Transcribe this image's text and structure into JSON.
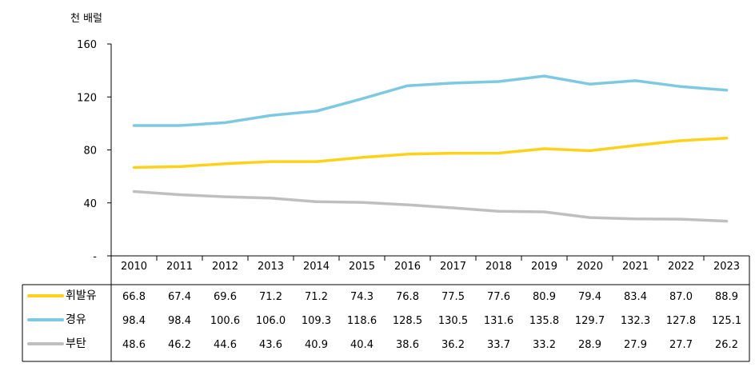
{
  "chart_data": {
    "type": "line",
    "unit_label": "천 배럴",
    "y_ticks": [
      "-",
      "40",
      "80",
      "120",
      "160"
    ],
    "ylim": [
      0,
      160
    ],
    "categories": [
      "2010",
      "2011",
      "2012",
      "2013",
      "2014",
      "2015",
      "2016",
      "2017",
      "2018",
      "2019",
      "2020",
      "2021",
      "2022",
      "2023"
    ],
    "series": [
      {
        "name": "휘발유",
        "color": "#FFD21A",
        "values": [
          66.8,
          67.4,
          69.6,
          71.2,
          71.2,
          74.3,
          76.8,
          77.5,
          77.6,
          80.9,
          79.4,
          83.4,
          87.0,
          88.9
        ],
        "labels": [
          "66.8",
          "67.4",
          "69.6",
          "71.2",
          "71.2",
          "74.3",
          "76.8",
          "77.5",
          "77.6",
          "80.9",
          "79.4",
          "83.4",
          "87.0",
          "88.9"
        ]
      },
      {
        "name": "경유",
        "color": "#7EC9E2",
        "values": [
          98.4,
          98.4,
          100.6,
          106.0,
          109.3,
          118.6,
          128.5,
          130.5,
          131.6,
          135.8,
          129.7,
          132.3,
          127.8,
          125.1
        ],
        "labels": [
          "98.4",
          "98.4",
          "100.6",
          "106.0",
          "109.3",
          "118.6",
          "128.5",
          "130.5",
          "131.6",
          "135.8",
          "129.7",
          "132.3",
          "127.8",
          "125.1"
        ]
      },
      {
        "name": "부탄",
        "color": "#BFBFBF",
        "values": [
          48.6,
          46.2,
          44.6,
          43.6,
          40.9,
          40.4,
          38.6,
          36.2,
          33.7,
          33.2,
          28.9,
          27.9,
          27.7,
          26.2
        ],
        "labels": [
          "48.6",
          "46.2",
          "44.6",
          "43.6",
          "40.9",
          "40.4",
          "38.6",
          "36.2",
          "33.7",
          "33.2",
          "28.9",
          "27.9",
          "27.7",
          "26.2"
        ]
      }
    ],
    "grid": false,
    "legend": "table-left"
  }
}
